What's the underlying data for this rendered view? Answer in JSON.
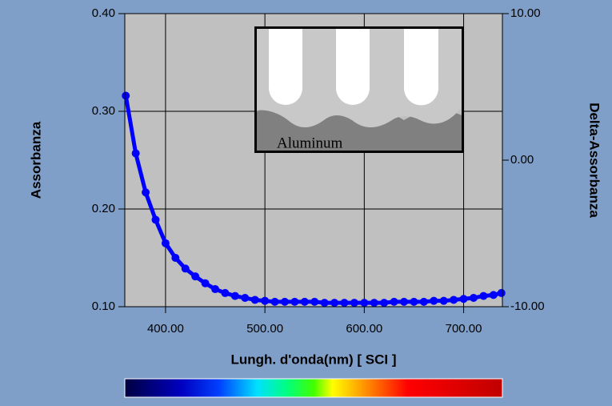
{
  "chart_data": {
    "type": "line",
    "x_label": "Lungh. d'onda(nm) [ SCI ]",
    "y_label": "Assorbanza",
    "y2_label": "Delta-Assorbanza",
    "x": [
      360,
      370,
      380,
      390,
      400,
      410,
      420,
      430,
      440,
      450,
      460,
      470,
      480,
      490,
      500,
      510,
      520,
      530,
      540,
      550,
      560,
      570,
      580,
      590,
      600,
      610,
      620,
      630,
      640,
      650,
      660,
      670,
      680,
      690,
      700,
      710,
      720,
      730,
      738
    ],
    "values": [
      0.316,
      0.257,
      0.217,
      0.189,
      0.165,
      0.15,
      0.139,
      0.131,
      0.124,
      0.118,
      0.114,
      0.111,
      0.109,
      0.107,
      0.106,
      0.105,
      0.105,
      0.105,
      0.105,
      0.105,
      0.104,
      0.104,
      0.104,
      0.104,
      0.104,
      0.104,
      0.104,
      0.105,
      0.105,
      0.105,
      0.105,
      0.106,
      0.106,
      0.107,
      0.108,
      0.109,
      0.111,
      0.112,
      0.114
    ],
    "color": "#0000ff",
    "xlim": [
      359,
      739
    ],
    "ylim": [
      0.1,
      0.4
    ],
    "y2lim": [
      -10,
      10
    ],
    "xticks": [
      {
        "value": 400,
        "label": "400.00"
      },
      {
        "value": 500,
        "label": "500.00"
      },
      {
        "value": 600,
        "label": "600.00"
      },
      {
        "value": 700,
        "label": "700.00"
      }
    ],
    "yticks": [
      {
        "value": 0.1,
        "label": "0.10"
      },
      {
        "value": 0.2,
        "label": "0.20"
      },
      {
        "value": 0.3,
        "label": "0.30"
      },
      {
        "value": 0.4,
        "label": "0.40"
      }
    ],
    "y2ticks": [
      {
        "value": -10,
        "label": "-10.00"
      },
      {
        "value": 0,
        "label": "0.00"
      },
      {
        "value": 10,
        "label": "10.00"
      }
    ],
    "grid": true
  },
  "inset": {
    "label": "Aluminum"
  }
}
